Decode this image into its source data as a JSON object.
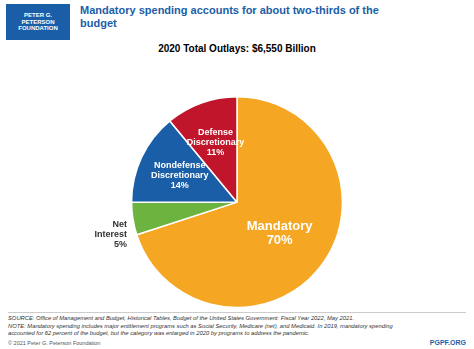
{
  "chart_data": {
    "type": "pie",
    "title": "Mandatory spending accounts for about two-thirds of the\nbudget",
    "subtitle": "2020 Total Outlays: $6,550 Billion",
    "categories": [
      "Mandatory",
      "Net\nInterest",
      "Nondefense\nDiscretionary",
      "Defense\nDiscretionary"
    ],
    "values": [
      70,
      5,
      14,
      11
    ],
    "value_labels": [
      "Mandatory\n70%",
      "Net\nInterest\n5%",
      "Nondefense\nDiscretionary\n14%",
      "Defense\nDiscretionary\n11%"
    ],
    "colors": [
      "#F5A623",
      "#6DB33F",
      "#1A5EA8",
      "#C0152A"
    ],
    "data_labels": true,
    "annotations": [
      "PETER G.\nPETERSON\nFOUNDATION",
      "SOURCE: Office of Management and Budget, Historical Tables, Budget of the United States Government: Fiscal Year 2022, May 2021.\nNOTE: Mandatory spending includes major entitlement programs such as Social Security, Medicare (net), and Medicaid. In 2019, mandatory spending\naccounted for 62 percent of the budget, but the category was enlarged in 2020 by programs to address the pandemic.",
      "© 2021 Peter G. Peterson Foundation",
      "PGPF.ORG"
    ]
  }
}
